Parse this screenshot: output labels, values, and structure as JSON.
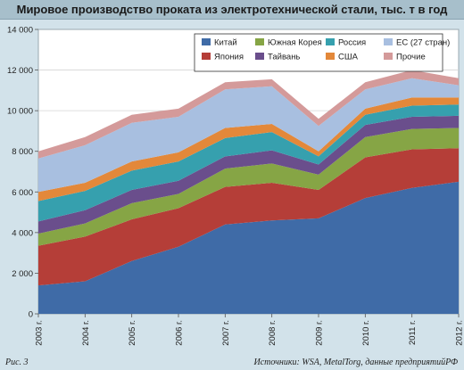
{
  "title": "Мировое производство проката из электротехнической стали, тыс. т в год",
  "figure_label": "Рис. 3",
  "source": "Источники: WSA, MetalTorg, данные предприятийРФ",
  "colors": {
    "background": "#d2e2ea",
    "plot_background": "#ffffff"
  },
  "chart_data": {
    "type": "area",
    "stacked": true,
    "categories": [
      "2003 г.",
      "2004 г.",
      "2005 г.",
      "2006 г.",
      "2007 г.",
      "2008 г.",
      "2009 г.",
      "2010 г.",
      "2011 г.",
      "2012 г."
    ],
    "ylim": [
      0,
      14000
    ],
    "yticks": [
      0,
      2000,
      4000,
      6000,
      8000,
      10000,
      12000,
      14000
    ],
    "ytick_labels": [
      "0",
      "2 000",
      "4 000",
      "6 000",
      "8 000",
      "10 000",
      "12 000",
      "14 000"
    ],
    "grid": true,
    "legend_position": "top-right",
    "series": [
      {
        "name": "Китай",
        "color": "#3f6ba7",
        "values": [
          1400,
          1600,
          2600,
          3300,
          4400,
          4600,
          4700,
          5700,
          6200,
          6500
        ]
      },
      {
        "name": "Япония",
        "color": "#b53e38",
        "values": [
          1950,
          2200,
          2050,
          1900,
          1850,
          1850,
          1400,
          2000,
          1900,
          1650
        ]
      },
      {
        "name": "Южная Корея",
        "color": "#86a545",
        "values": [
          600,
          650,
          800,
          700,
          900,
          950,
          750,
          1000,
          1000,
          1000
        ]
      },
      {
        "name": "Тайвань",
        "color": "#6a4e8c",
        "values": [
          600,
          650,
          650,
          650,
          600,
          650,
          500,
          600,
          600,
          600
        ]
      },
      {
        "name": "Россия",
        "color": "#36a0ae",
        "values": [
          1000,
          950,
          950,
          950,
          900,
          900,
          400,
          500,
          550,
          550
        ]
      },
      {
        "name": "США",
        "color": "#e3883a",
        "values": [
          450,
          400,
          450,
          450,
          500,
          400,
          250,
          300,
          400,
          350
        ]
      },
      {
        "name": "ЕС (27 стран)",
        "color": "#a8bfe0",
        "values": [
          1650,
          1850,
          1900,
          1750,
          1900,
          1850,
          1250,
          950,
          950,
          600
        ]
      },
      {
        "name": "Прочие",
        "color": "#d49a9a",
        "values": [
          350,
          400,
          400,
          400,
          350,
          350,
          350,
          350,
          400,
          350
        ]
      }
    ],
    "legend_order": [
      "Китай",
      "Южная Корея",
      "Россия",
      "ЕС (27 стран)",
      "Япония",
      "Тайвань",
      "США",
      "Прочие"
    ]
  }
}
